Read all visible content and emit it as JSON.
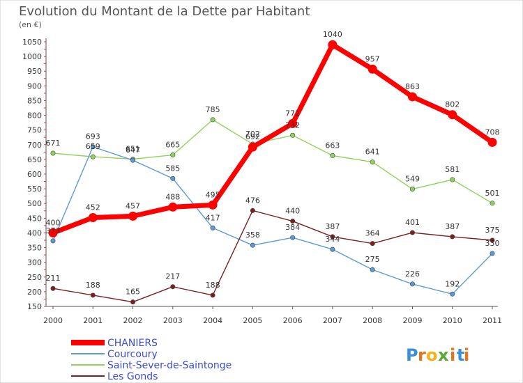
{
  "chart_data": {
    "type": "line",
    "title": "Evolution du Montant de la Dette par Habitant",
    "subtitle": "(en €)",
    "x": [
      "2000",
      "2001",
      "2002",
      "2003",
      "2004",
      "2005",
      "2006",
      "2007",
      "2008",
      "2009",
      "2010",
      "2011"
    ],
    "ylim": [
      150,
      1050
    ],
    "yticks": [
      150,
      200,
      250,
      300,
      350,
      400,
      450,
      500,
      550,
      600,
      650,
      700,
      750,
      800,
      850,
      900,
      950,
      1000,
      1050
    ],
    "grid": false,
    "legend_position": "bottom-left",
    "series": [
      {
        "name": "CHANIERS",
        "color": "#ff0000",
        "values": [
          400,
          452,
          457,
          488,
          495,
          692,
          772,
          1040,
          957,
          863,
          802,
          708
        ]
      },
      {
        "name": "Courcoury",
        "color": "#5b9bd5",
        "values": [
          373,
          693,
          647,
          585,
          417,
          358,
          384,
          344,
          275,
          226,
          192,
          330
        ]
      },
      {
        "name": "Saint-Sever-de-Saintonge",
        "color": "#8fd35a",
        "values": [
          671,
          659,
          651,
          665,
          785,
          702,
          732,
          663,
          641,
          549,
          581,
          501
        ]
      },
      {
        "name": "Les Gonds",
        "color": "#7a2020",
        "values": [
          211,
          188,
          165,
          217,
          188,
          476,
          440,
          387,
          364,
          401,
          387,
          375
        ]
      }
    ]
  },
  "logo": {
    "text": "Proxiti",
    "letters": [
      "P",
      "r",
      "o",
      "x",
      "i",
      "t",
      "i"
    ],
    "colors": [
      "#3b8fd9",
      "#e8741c",
      "#f2b21a",
      "#5aa832",
      "#e8741c",
      "#3b8fd9",
      "#e8741c"
    ]
  }
}
